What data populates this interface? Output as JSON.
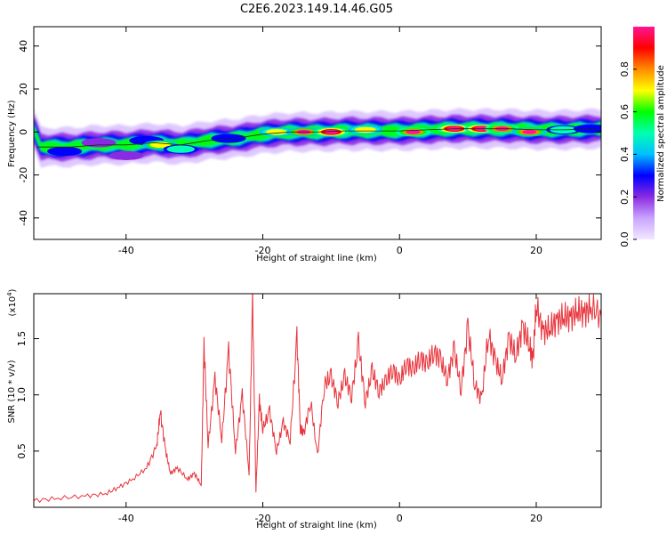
{
  "title": "C2E6.2023.149.14.46.G05",
  "chart_data": [
    {
      "type": "heatmap",
      "xlabel": "Height of straight line (km)",
      "ylabel": "Frequency (Hz)",
      "xlim": [
        -53.5,
        29.5
      ],
      "ylim": [
        -50,
        49
      ],
      "x_ticks": [
        -40,
        -20,
        0,
        20
      ],
      "y_ticks": [
        -40,
        -20,
        0,
        20,
        40
      ],
      "colorbar": {
        "label": "Normalized spectral amplitude",
        "range": [
          0,
          1
        ],
        "ticks": [
          "0.0",
          "0.2",
          "0.4",
          "0.6",
          "0.8"
        ],
        "colors": [
          "#f2e8ff",
          "#c9a4ff",
          "#8a2be2",
          "#0000ff",
          "#00bfff",
          "#00ffb0",
          "#00ff00",
          "#ffff00",
          "#ff8c00",
          "#ff0000",
          "#ff1493"
        ]
      },
      "ridge": {
        "x": [
          -53,
          -48,
          -44,
          -40,
          -36,
          -32,
          -28,
          -24,
          -20,
          -16,
          -12,
          -8,
          -4,
          0,
          4,
          8,
          12,
          16,
          20,
          24,
          29
        ],
        "y": [
          -7,
          -7,
          -6,
          -6,
          -5,
          -6,
          -4,
          -3,
          -1,
          0,
          0,
          0.5,
          0.5,
          0.5,
          1,
          1.5,
          1.5,
          1.5,
          1,
          1,
          1.5
        ]
      },
      "blobs": [
        {
          "x": -49,
          "y": -9,
          "a": 0.5
        },
        {
          "x": -44,
          "y": -5,
          "a": 0.45
        },
        {
          "x": -40,
          "y": -11,
          "a": 0.35
        },
        {
          "x": -37,
          "y": -4,
          "a": 0.55
        },
        {
          "x": -35,
          "y": -6,
          "a": 0.75
        },
        {
          "x": -32,
          "y": -8,
          "a": 0.6
        },
        {
          "x": -25,
          "y": -3,
          "a": 0.5
        },
        {
          "x": -18,
          "y": 0,
          "a": 0.7
        },
        {
          "x": -14,
          "y": 0,
          "a": 0.8
        },
        {
          "x": -10,
          "y": 0,
          "a": 0.95
        },
        {
          "x": -5,
          "y": 1,
          "a": 0.7
        },
        {
          "x": 2,
          "y": 0,
          "a": 0.85
        },
        {
          "x": 8,
          "y": 1.5,
          "a": 0.95
        },
        {
          "x": 12,
          "y": 1.5,
          "a": 0.9
        },
        {
          "x": 15,
          "y": 1.5,
          "a": 0.85
        },
        {
          "x": 19,
          "y": 0,
          "a": 0.8
        },
        {
          "x": 24,
          "y": 1,
          "a": 0.6
        },
        {
          "x": 28,
          "y": 1.5,
          "a": 0.5
        }
      ]
    },
    {
      "type": "line",
      "xlabel": "Height of straight line (km)",
      "ylabel": "SNR (10 * v/v)",
      "yunit": "(x10",
      "yunit_exp": "4",
      "yunit_close": ")",
      "xlim": [
        -53.5,
        29.5
      ],
      "ylim": [
        0,
        1.9
      ],
      "x_ticks": [
        -40,
        -20,
        0,
        20
      ],
      "y_tick_labels": [
        "0.5",
        "1.0",
        "1.5"
      ],
      "y_tick_values": [
        0.5,
        1.0,
        1.5
      ],
      "series": [
        {
          "color": "#e8333b",
          "x": [
            -53.5,
            -50,
            -46,
            -43,
            -41,
            -39,
            -37,
            -35.5,
            -35,
            -34.2,
            -33.5,
            -32.5,
            -31,
            -30,
            -29,
            -28.6,
            -28,
            -27,
            -26,
            -25,
            -24,
            -23,
            -22,
            -21.5,
            -21,
            -20.5,
            -20,
            -19,
            -18,
            -17,
            -16,
            -15,
            -14.5,
            -14,
            -13,
            -12,
            -11,
            -10,
            -9,
            -8,
            -7,
            -6,
            -5,
            -4,
            -3,
            -2,
            -1,
            0,
            1,
            2,
            3,
            4,
            5,
            6,
            7,
            8,
            9,
            10,
            11,
            12,
            13,
            14,
            15,
            16,
            17,
            18,
            19,
            19.5,
            20,
            21,
            22,
            23,
            24,
            25,
            26,
            27,
            28,
            29.5
          ],
          "y": [
            0.06,
            0.08,
            0.1,
            0.12,
            0.18,
            0.25,
            0.35,
            0.55,
            0.85,
            0.5,
            0.3,
            0.35,
            0.25,
            0.3,
            0.2,
            1.45,
            0.55,
            1.15,
            0.6,
            1.4,
            0.5,
            1.0,
            0.3,
            1.85,
            0.15,
            0.95,
            0.7,
            0.85,
            0.5,
            0.75,
            0.6,
            1.5,
            0.7,
            0.65,
            0.95,
            0.45,
            1.1,
            1.15,
            0.95,
            1.15,
            1.0,
            1.45,
            0.95,
            1.2,
            1.05,
            1.1,
            1.25,
            1.1,
            1.3,
            1.2,
            1.35,
            1.25,
            1.4,
            1.3,
            1.15,
            1.4,
            1.05,
            1.6,
            1.1,
            0.95,
            1.55,
            1.3,
            1.15,
            1.5,
            1.35,
            1.6,
            1.45,
            1.3,
            1.8,
            1.55,
            1.6,
            1.65,
            1.7,
            1.68,
            1.75,
            1.72,
            1.78,
            1.7
          ]
        }
      ]
    }
  ]
}
